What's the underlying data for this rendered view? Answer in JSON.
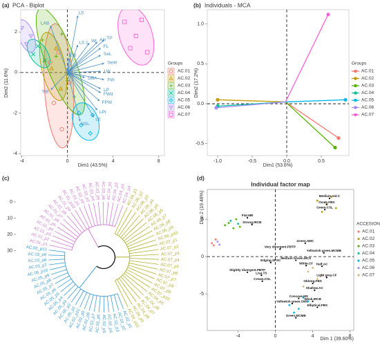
{
  "chart_data": [
    {
      "type": "biplot",
      "label": "(a)",
      "title": "PCA - Biplot",
      "xlabel": "Dim1 (43.5%)",
      "ylabel": "Dim2 (11.6%)",
      "xlim": [
        -4.1,
        8.5
      ],
      "ylim": [
        -4.1,
        3.1
      ],
      "xticks": [
        -4,
        0,
        4,
        8
      ],
      "yticks": [
        -4,
        -2,
        0,
        2
      ],
      "legend_title": "Groups",
      "legend": "right",
      "ellipses": true,
      "series": [
        {
          "name": "AC.01",
          "color": "#f8766d",
          "marker": "circle",
          "x": [
            -1.5,
            -0.5,
            -1.2,
            0.2,
            -0.8
          ],
          "values": [
            0.5,
            -2.8,
            -1.5,
            -0.5,
            1.0
          ]
        },
        {
          "name": "AC.02",
          "color": "#c49a00",
          "marker": "triangle",
          "x": [
            -2.0,
            -0.6,
            -1.4,
            -1.0
          ],
          "values": [
            0.6,
            -0.8,
            0.2,
            1.2
          ]
        },
        {
          "name": "AC.03",
          "color": "#53b400",
          "marker": "plus",
          "x": [
            -2.2,
            0.6,
            -1.0,
            0.0,
            -0.5
          ],
          "values": [
            1.6,
            -1.2,
            0.8,
            -0.4,
            1.9
          ]
        },
        {
          "name": "AC.04",
          "color": "#00c094",
          "marker": "cross",
          "x": [
            -3.0,
            -2.0,
            -2.6
          ],
          "values": [
            0.9,
            0.6,
            1.3
          ]
        },
        {
          "name": "AC.05",
          "color": "#00b6eb",
          "marker": "diamond",
          "x": [
            1.0,
            2.0,
            1.2,
            2.2
          ],
          "values": [
            -2.0,
            -3.0,
            -2.6,
            -2.1
          ]
        },
        {
          "name": "AC.06",
          "color": "#a58aff",
          "marker": "triangle-down",
          "x": [
            -4.0,
            -3.2,
            -3.6
          ],
          "values": [
            2.2,
            1.8,
            1.4
          ]
        },
        {
          "name": "AC.07",
          "color": "#fb61d7",
          "marker": "square",
          "x": [
            5,
            7,
            6,
            6.5,
            5.5
          ],
          "values": [
            2.5,
            1.0,
            1.8,
            2.6,
            1.2
          ]
        }
      ],
      "variables": {
        "color": "#4a8fc4",
        "labels": [
          "LS",
          "LAB",
          "LS.1",
          "Wr",
          "AH",
          "TP",
          "FL",
          "SeL",
          "EW",
          "SeW",
          "LW",
          "FW",
          "DBA",
          "LP",
          "FWd",
          "FPW",
          "LPt",
          "LE",
          "NSL",
          "NB"
        ],
        "x": [
          0.9,
          -1.5,
          0.9,
          1.9,
          2.6,
          3.2,
          2.9,
          2.9,
          0.1,
          3.2,
          2.9,
          3.2,
          1.5,
          2.9,
          2.9,
          2.8,
          2.6,
          2.3,
          1.1,
          -1.45
        ],
        "values": [
          2.8,
          2.3,
          1.35,
          1.45,
          1.5,
          1.6,
          1.2,
          0.85,
          0.7,
          0.45,
          0.05,
          -0.35,
          -0.25,
          -0.8,
          -1.0,
          -1.4,
          -1.85,
          -2.2,
          -2.4,
          -0.85
        ]
      }
    },
    {
      "type": "scatter",
      "label": "(b)",
      "title": "Individuals - MCA",
      "xlabel": "Dim1 (53.6%)",
      "ylabel": "Dim2 (17.2%)",
      "xlim": [
        -1.15,
        0.9
      ],
      "ylim": [
        -0.65,
        1.18
      ],
      "xticks": [
        {
          "value": -1,
          "label": "-1.0"
        },
        -0.5,
        {
          "value": 0,
          "label": "0.0"
        },
        0.5
      ],
      "yticks": [
        -0.5,
        {
          "value": 0,
          "label": "0.0"
        },
        0.5,
        {
          "value": 1,
          "label": "1.0"
        }
      ],
      "legend_title": "Groups",
      "legend": "right",
      "spokes": true,
      "series": [
        {
          "name": "AC.01",
          "color": "#f8766d",
          "x": [
            0.75
          ],
          "values": [
            -0.43
          ]
        },
        {
          "name": "AC.02",
          "color": "#c49a00",
          "x": [
            -1.0
          ],
          "values": [
            0.05
          ]
        },
        {
          "name": "AC.03",
          "color": "#53b400",
          "x": [
            0.7
          ],
          "values": [
            -0.55
          ]
        },
        {
          "name": "AC.04",
          "color": "#00c094",
          "x": [
            -1.0
          ],
          "values": [
            -0.03
          ]
        },
        {
          "name": "AC.05",
          "color": "#00b6eb",
          "x": [
            0.85
          ],
          "values": [
            0.05
          ]
        },
        {
          "name": "AC.06",
          "color": "#a58aff",
          "x": [
            -1.02
          ],
          "values": [
            -0.05
          ]
        },
        {
          "name": "AC.07",
          "color": "#fb61d7",
          "x": [
            0.6
          ],
          "values": [
            1.12
          ]
        }
      ]
    },
    {
      "type": "dendrogram",
      "label": "(c)",
      "ylim": [
        0,
        34
      ],
      "yticks": [
        0,
        10,
        20,
        30
      ],
      "root_height": 27,
      "root_color": "#000000",
      "clusters": [
        {
          "color": "#d27bd3",
          "height": 14,
          "labels": [
            "AC.01_p1",
            "AC.01_p2",
            "AC.01_p3",
            "AC.01_p4",
            "AC.01_p5",
            "AC.01_p6",
            "AC.01_p7",
            "AC.01_p8",
            "AC.01_p9",
            "AC.01_p10",
            "AC.03_p1",
            "AC.03_p2",
            "AC.03_p3",
            "AC.03_p4",
            "AC.03_p5",
            "AC.03_p6",
            "AC.04_p1",
            "AC.04_p2",
            "AC.04_p3",
            "AC.04_p4"
          ]
        },
        {
          "color": "#b0b02c",
          "height": 18,
          "labels": [
            "AC.06_p1",
            "AC.06_p2",
            "AC.06_p3",
            "AC.06_p4",
            "AC.06_p5",
            "AC.06_p6",
            "AC.06_p7",
            "AC.06_p8",
            "AC.06_p9",
            "AC.06_p10",
            "AC.07_p1",
            "AC.07_p2",
            "AC.07_p3",
            "AC.07_p4",
            "AC.07_p5",
            "AC.07_p6",
            "AC.07_p7",
            "AC.07_p8",
            "AC.07_p9",
            "AC.07_p10",
            "AC.04_p5",
            "AC.04_p6",
            "AC.04_p7",
            "AC.04_p8",
            "AC.04_p9",
            "AC.04_p10"
          ]
        },
        {
          "color": "#3b9dd3",
          "height": 10,
          "labels": [
            "AC.02_p1",
            "AC.02_p2",
            "AC.02_p3",
            "AC.02_p4",
            "AC.02_p5",
            "AC.02_p6",
            "AC.02_p7",
            "AC.02_p8",
            "AC.02_p9",
            "AC.02_p10",
            "AC.05_p1",
            "AC.05_p2",
            "AC.05_p3",
            "AC.05_p4",
            "AC.05_p5",
            "AC.05_p6",
            "AC.05_p7",
            "AC.05_p8",
            "AC.05_p9",
            "AC.05_p10",
            "AC.03_p7",
            "AC.03_p8",
            "AC.03_p9",
            "AC.03_p10"
          ]
        }
      ]
    },
    {
      "type": "scatter",
      "label": "(d)",
      "title": "Individual factor map",
      "xlabel": "Dim 1 (39.60%)",
      "ylabel": "Dim 2 (19.48%)",
      "xlim": [
        -7.3,
        8.4
      ],
      "ylim": [
        -9.9,
        9
      ],
      "xticks": [
        -4,
        0,
        4,
        8
      ],
      "yticks": [
        -5,
        0,
        5
      ],
      "legend_title": "ACCESION",
      "legend": "right",
      "series": [
        {
          "name": "AC.01",
          "color": "#f8766d",
          "x": [
            -6.8,
            -6.4,
            -6.6
          ],
          "values": [
            1.8,
            2.3,
            1.5
          ]
        },
        {
          "name": "AC.02",
          "color": "#c49a00",
          "x": [
            4.5,
            5.5,
            6.0,
            6.5,
            5.0
          ],
          "values": [
            7.5,
            7.0,
            8.0,
            6.5,
            6.0
          ]
        },
        {
          "name": "AC.03",
          "color": "#53b400",
          "x": [
            -5.0,
            -4.2,
            -3.8,
            -4.5,
            -5.4
          ],
          "values": [
            4.5,
            5.0,
            4.0,
            3.8,
            4.2
          ]
        },
        {
          "name": "AC.04",
          "color": "#00c094",
          "x": [
            -4.8,
            -4.0
          ],
          "values": [
            4.8,
            4.4
          ]
        },
        {
          "name": "AC.05",
          "color": "#00b6eb",
          "x": [
            1.5,
            2.5,
            3.5,
            2.0,
            3.0
          ],
          "values": [
            -6.5,
            -7.0,
            -6.0,
            -7.5,
            -5.5
          ]
        },
        {
          "name": "AC.06",
          "color": "#a58aff",
          "x": [
            -6.2,
            -6.0
          ],
          "values": [
            2.0,
            1.6
          ]
        },
        {
          "name": "AC.07",
          "color": "#d9b77a",
          "x": [
            3.5,
            4.5,
            3.0,
            4.0,
            5.0
          ],
          "values": [
            -2.0,
            -3.0,
            -4.0,
            -1.5,
            -2.5
          ]
        }
      ],
      "variables": {
        "color": "#000000",
        "labels": [
          "Medium red.C",
          "Ovate.FBS",
          "Green.CSL",
          "Flat.MR",
          "Strong.IRCB",
          "Green.SMC",
          "Very divergent.PBTP",
          "Yellowish green.MCMB",
          "Medium brown.MCS",
          "White.CF",
          "Half.AC",
          "Edging.SPSC",
          "Slightly divergent.PBTP",
          "Lisa.TS",
          "Cream.CSL",
          "Light grey.CF",
          "Oblong.FBS",
          "Shallow.AC",
          "Concave.MS",
          "Weak.IRCB",
          "Yellowish green.SMC",
          "Elliptical.FBS",
          "Green.MCMB"
        ],
        "x": [
          5.8,
          5.5,
          5.3,
          -3.0,
          -2.5,
          3.2,
          0.5,
          5.2,
          2.2,
          3.3,
          5.0,
          -0.5,
          -3.0,
          -1.5,
          -1.4,
          5.5,
          4.0,
          4.2,
          2.5,
          4.0,
          1.8,
          4.5,
          2.2
        ],
        "values": [
          7.8,
          7.0,
          6.3,
          5.2,
          4.3,
          1.8,
          1.0,
          0.5,
          -0.5,
          -1.2,
          -1.3,
          -0.8,
          -2.1,
          -2.5,
          -3.3,
          -2.8,
          -3.6,
          -4.5,
          -5.6,
          -6.0,
          -6.3,
          -6.8,
          -8.2
        ]
      }
    }
  ]
}
